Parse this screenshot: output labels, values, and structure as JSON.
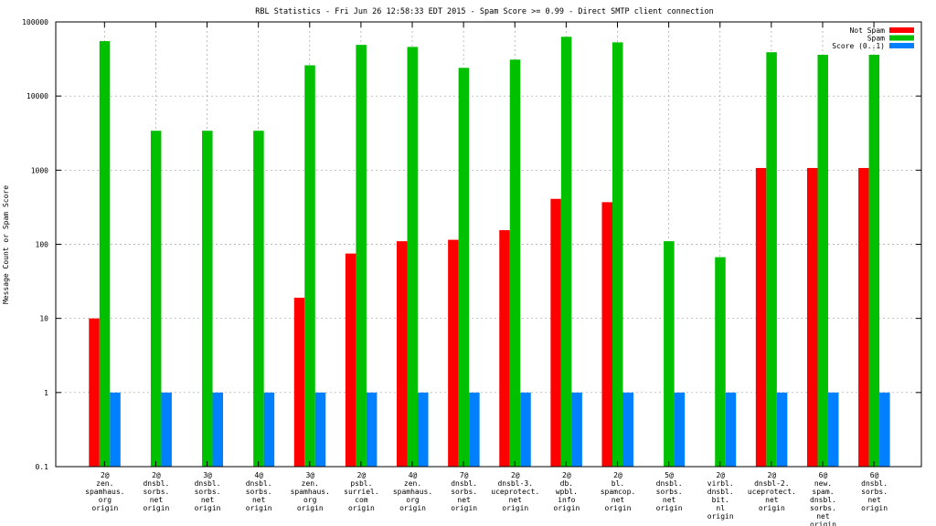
{
  "chart_data": {
    "type": "bar",
    "title": "RBL Statistics - Fri Jun 26 12:58:33 EDT 2015 - Spam Score >= 0.99 - Direct SMTP client connection",
    "ylabel": "Message Count or Spam Score",
    "xlabel": "",
    "yscale": "log",
    "ylim": [
      0.1,
      100000
    ],
    "yticks": [
      "0.1",
      "1",
      "10",
      "100",
      "1000",
      "10000",
      "100000"
    ],
    "grid": true,
    "legend_position": "top-right",
    "categories": [
      [
        "2@",
        "zen.",
        "spamhaus.",
        "org",
        "origin"
      ],
      [
        "2@",
        "dnsbl.",
        "sorbs.",
        "net",
        "origin"
      ],
      [
        "3@",
        "dnsbl.",
        "sorbs.",
        "net",
        "origin"
      ],
      [
        "4@",
        "dnsbl.",
        "sorbs.",
        "net",
        "origin"
      ],
      [
        "3@",
        "zen.",
        "spamhaus.",
        "org",
        "origin"
      ],
      [
        "2@",
        "psbl.",
        "surriel.",
        "com",
        "origin"
      ],
      [
        "4@",
        "zen.",
        "spamhaus.",
        "org",
        "origin"
      ],
      [
        "7@",
        "dnsbl.",
        "sorbs.",
        "net",
        "origin"
      ],
      [
        "2@",
        "dnsbl-3.",
        "uceprotect.",
        "net",
        "origin"
      ],
      [
        "2@",
        "db.",
        "wpbl.",
        "info",
        "origin"
      ],
      [
        "2@",
        "bl.",
        "spamcop.",
        "net",
        "origin"
      ],
      [
        "5@",
        "dnsbl.",
        "sorbs.",
        "net",
        "origin"
      ],
      [
        "2@",
        "virbl.",
        "dnsbl.",
        "bit.",
        "nl",
        "origin"
      ],
      [
        "2@",
        "dnsbl-2.",
        "uceprotect.",
        "net",
        "origin"
      ],
      [
        "6@",
        "new.",
        "spam.",
        "dnsbl.",
        "sorbs.",
        "net",
        "origin"
      ],
      [
        "6@",
        "dnsbl.",
        "sorbs.",
        "net",
        "origin"
      ]
    ],
    "series": [
      {
        "name": "Not Spam",
        "color": "#ff0000",
        "values": [
          10,
          null,
          null,
          null,
          19,
          75,
          110,
          115,
          155,
          410,
          370,
          null,
          null,
          1070,
          1070,
          1070
        ]
      },
      {
        "name": "Spam",
        "color": "#00c000",
        "values": [
          55000,
          3400,
          3400,
          3400,
          26000,
          49000,
          46000,
          24000,
          31000,
          63000,
          53000,
          110,
          67,
          39000,
          36000,
          36000
        ]
      },
      {
        "name": "Score (0..1)",
        "color": "#0080ff",
        "values": [
          1,
          1,
          1,
          1,
          1,
          1,
          1,
          1,
          1,
          1,
          1,
          1,
          1,
          1,
          1,
          1
        ]
      }
    ]
  }
}
